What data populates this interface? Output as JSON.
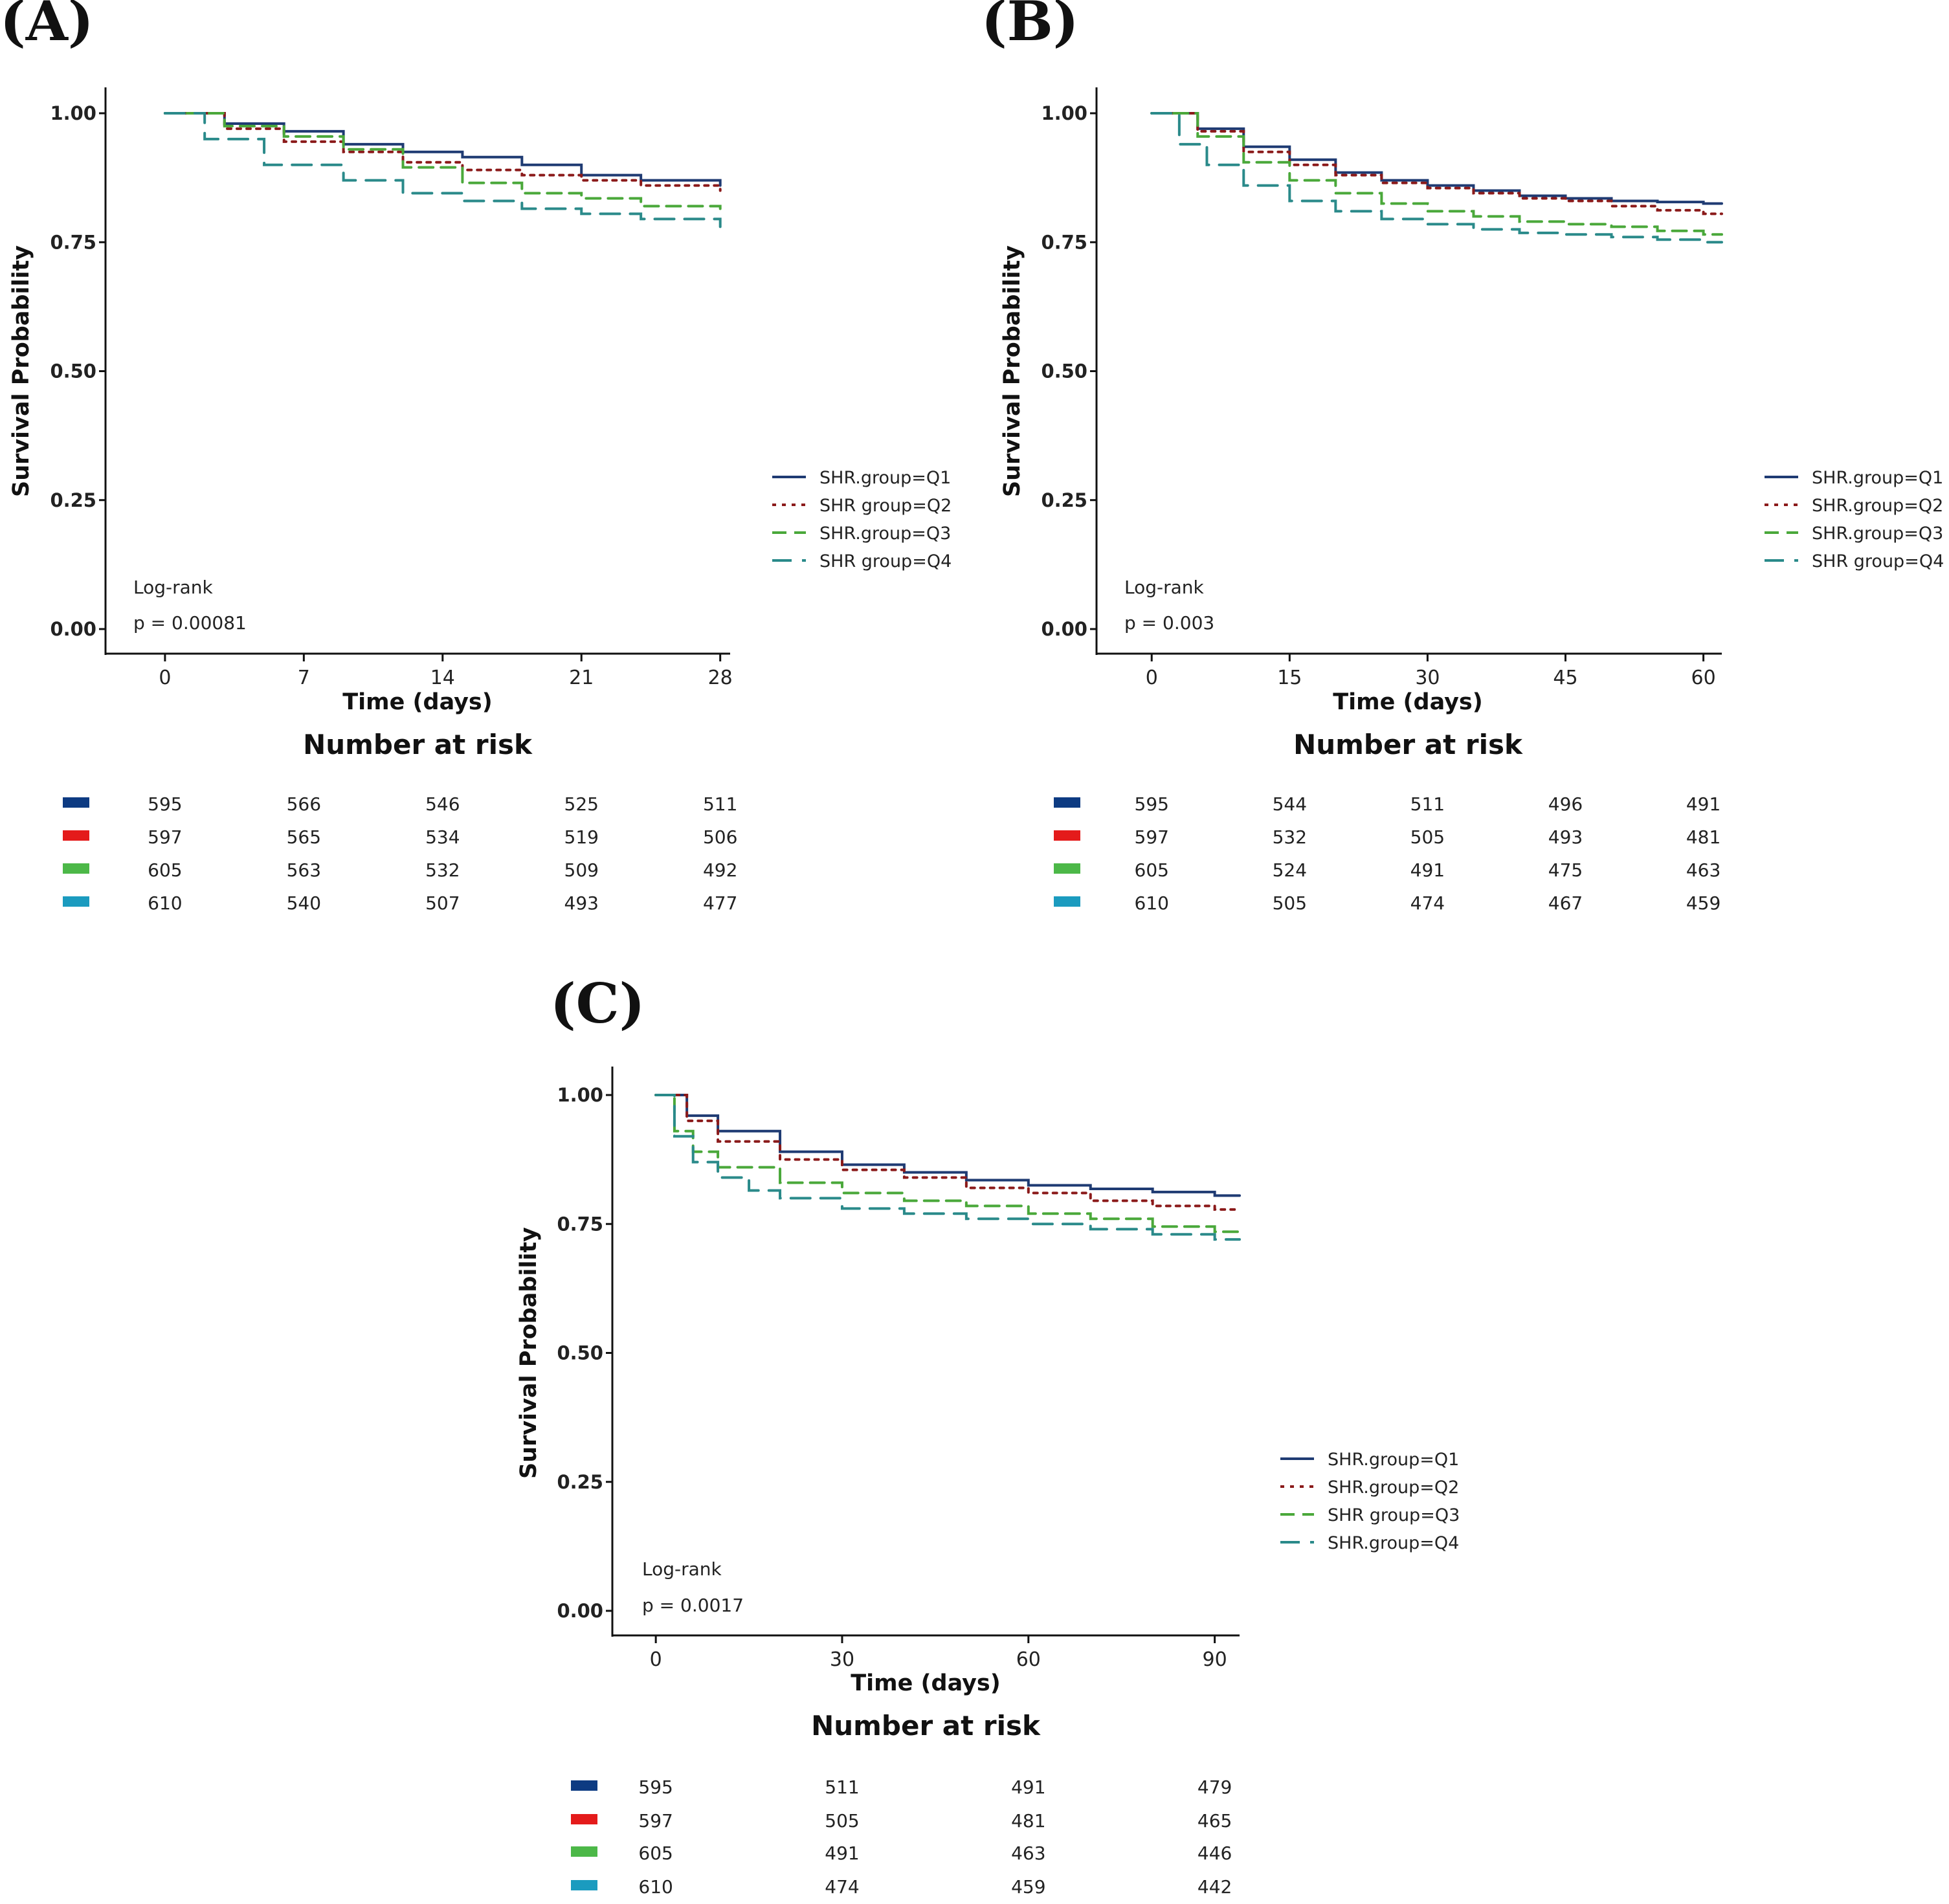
{
  "colors": {
    "Q1": "#1f3b73",
    "Q2": "#8b1a1a",
    "Q3": "#4aa83a",
    "Q4": "#2a8a8a",
    "risk_Q1": "#0d3b82",
    "risk_Q2": "#e41b1b",
    "risk_Q3": "#4cb848",
    "risk_Q4": "#1b9bbf",
    "axis": "#111111"
  },
  "chart_data": [
    {
      "type": "line",
      "panel_label": "(A)",
      "xlabel": "Time (days)",
      "ylabel": "Survival Probability",
      "xlim": [
        -3,
        28.5
      ],
      "ylim": [
        0,
        1.0
      ],
      "xticks": [
        0,
        7,
        14,
        21,
        28
      ],
      "xtick_labels": [
        "0",
        "7",
        "14",
        "21",
        "28"
      ],
      "yticks": [
        0.0,
        0.25,
        0.5,
        0.75,
        1.0
      ],
      "ytick_labels": [
        "0.00",
        "0.25",
        "0.50",
        "0.75",
        "1.00"
      ],
      "test_label": "Log-rank",
      "p_value_text": "p = 0.00081",
      "series": [
        {
          "name": "SHR.group=Q1",
          "key": "Q1",
          "dash": "solid",
          "x": [
            0,
            3,
            6,
            9,
            12,
            15,
            18,
            21,
            24,
            28
          ],
          "y": [
            1.0,
            0.98,
            0.965,
            0.94,
            0.925,
            0.915,
            0.9,
            0.88,
            0.87,
            0.86
          ]
        },
        {
          "name": "SHR group=Q2",
          "key": "Q2",
          "dash": "dotted",
          "x": [
            0,
            3,
            6,
            9,
            12,
            15,
            18,
            21,
            24,
            28
          ],
          "y": [
            1.0,
            0.97,
            0.945,
            0.925,
            0.905,
            0.89,
            0.88,
            0.87,
            0.86,
            0.85
          ]
        },
        {
          "name": "SHR.group=Q3",
          "key": "Q3",
          "dash": "dashed",
          "x": [
            0,
            3,
            6,
            9,
            12,
            15,
            18,
            21,
            24,
            28
          ],
          "y": [
            1.0,
            0.975,
            0.955,
            0.93,
            0.895,
            0.865,
            0.845,
            0.835,
            0.82,
            0.815
          ]
        },
        {
          "name": "SHR group=Q4",
          "key": "Q4",
          "dash": "longdash",
          "x": [
            0,
            2,
            5,
            9,
            12,
            15,
            18,
            21,
            24,
            28
          ],
          "y": [
            1.0,
            0.95,
            0.9,
            0.87,
            0.845,
            0.83,
            0.815,
            0.805,
            0.795,
            0.78
          ]
        }
      ],
      "risk_table": {
        "title": "Number at risk",
        "times": [
          0,
          7,
          14,
          21,
          28
        ],
        "rows": [
          {
            "key": "Q1",
            "values": [
              "595",
              "566",
              "546",
              "525",
              "511"
            ]
          },
          {
            "key": "Q2",
            "values": [
              "597",
              "565",
              "534",
              "519",
              "506"
            ]
          },
          {
            "key": "Q3",
            "values": [
              "605",
              "563",
              "532",
              "509",
              "492"
            ]
          },
          {
            "key": "Q4",
            "values": [
              "610",
              "540",
              "507",
              "493",
              "477"
            ]
          }
        ]
      }
    },
    {
      "type": "line",
      "panel_label": "(B)",
      "xlabel": "Time (days)",
      "ylabel": "Survival Probability",
      "xlim": [
        -6,
        62
      ],
      "ylim": [
        0,
        1.0
      ],
      "xticks": [
        0,
        15,
        30,
        45,
        60
      ],
      "xtick_labels": [
        "0",
        "15",
        "30",
        "45",
        "60"
      ],
      "yticks": [
        0.0,
        0.25,
        0.5,
        0.75,
        1.0
      ],
      "ytick_labels": [
        "0.00",
        "0.25",
        "0.50",
        "0.75",
        "1.00"
      ],
      "test_label": "Log-rank",
      "p_value_text": "p = 0.003",
      "series": [
        {
          "name": "SHR.group=Q1",
          "key": "Q1",
          "dash": "solid",
          "x": [
            0,
            5,
            10,
            15,
            20,
            25,
            30,
            35,
            40,
            45,
            50,
            55,
            60,
            62
          ],
          "y": [
            1.0,
            0.97,
            0.935,
            0.91,
            0.885,
            0.87,
            0.86,
            0.85,
            0.84,
            0.835,
            0.83,
            0.828,
            0.825,
            0.825
          ]
        },
        {
          "name": "SHR.group=Q2",
          "key": "Q2",
          "dash": "dotted",
          "x": [
            0,
            5,
            10,
            15,
            20,
            25,
            30,
            35,
            40,
            45,
            50,
            55,
            60,
            62
          ],
          "y": [
            1.0,
            0.965,
            0.925,
            0.9,
            0.88,
            0.865,
            0.855,
            0.845,
            0.835,
            0.83,
            0.82,
            0.812,
            0.805,
            0.805
          ]
        },
        {
          "name": "SHR.group=Q3",
          "key": "Q3",
          "dash": "dashed",
          "x": [
            0,
            5,
            10,
            15,
            20,
            25,
            30,
            35,
            40,
            45,
            50,
            55,
            60,
            62
          ],
          "y": [
            1.0,
            0.955,
            0.905,
            0.87,
            0.845,
            0.825,
            0.81,
            0.8,
            0.79,
            0.785,
            0.78,
            0.772,
            0.765,
            0.765
          ]
        },
        {
          "name": "SHR group=Q4",
          "key": "Q4",
          "dash": "longdash",
          "x": [
            0,
            3,
            6,
            10,
            15,
            20,
            25,
            30,
            35,
            40,
            45,
            50,
            55,
            60,
            62
          ],
          "y": [
            1.0,
            0.94,
            0.9,
            0.86,
            0.83,
            0.81,
            0.795,
            0.785,
            0.775,
            0.768,
            0.765,
            0.76,
            0.755,
            0.75,
            0.75
          ]
        }
      ],
      "risk_table": {
        "title": "Number at risk",
        "times": [
          0,
          15,
          30,
          45,
          60
        ],
        "rows": [
          {
            "key": "Q1",
            "values": [
              "595",
              "544",
              "511",
              "496",
              "491"
            ]
          },
          {
            "key": "Q2",
            "values": [
              "597",
              "532",
              "505",
              "493",
              "481"
            ]
          },
          {
            "key": "Q3",
            "values": [
              "605",
              "524",
              "491",
              "475",
              "463"
            ]
          },
          {
            "key": "Q4",
            "values": [
              "610",
              "505",
              "474",
              "467",
              "459"
            ]
          }
        ]
      }
    },
    {
      "type": "line",
      "panel_label": "(C)",
      "xlabel": "Time (days)",
      "ylabel": "Survival Probability",
      "xlim": [
        -7,
        94
      ],
      "ylim": [
        0,
        1.0
      ],
      "xticks": [
        0,
        30,
        60,
        90
      ],
      "xtick_labels": [
        "0",
        "30",
        "60",
        "90"
      ],
      "yticks": [
        0.0,
        0.25,
        0.5,
        0.75,
        1.0
      ],
      "ytick_labels": [
        "0.00",
        "0.25",
        "0.50",
        "0.75",
        "1.00"
      ],
      "test_label": "Log-rank",
      "p_value_text": "p = 0.0017",
      "series": [
        {
          "name": "SHR.group=Q1",
          "key": "Q1",
          "dash": "solid",
          "x": [
            0,
            5,
            10,
            20,
            30,
            40,
            50,
            60,
            70,
            80,
            90,
            94
          ],
          "y": [
            1.0,
            0.96,
            0.93,
            0.89,
            0.865,
            0.85,
            0.835,
            0.825,
            0.818,
            0.812,
            0.805,
            0.805
          ]
        },
        {
          "name": "SHR.group=Q2",
          "key": "Q2",
          "dash": "dotted",
          "x": [
            0,
            5,
            10,
            20,
            30,
            40,
            50,
            60,
            70,
            80,
            90,
            94
          ],
          "y": [
            1.0,
            0.95,
            0.91,
            0.875,
            0.855,
            0.84,
            0.82,
            0.81,
            0.795,
            0.785,
            0.778,
            0.778
          ]
        },
        {
          "name": "SHR group=Q3",
          "key": "Q3",
          "dash": "dashed",
          "x": [
            0,
            3,
            6,
            10,
            20,
            30,
            40,
            50,
            60,
            70,
            80,
            90,
            94
          ],
          "y": [
            1.0,
            0.93,
            0.89,
            0.86,
            0.83,
            0.81,
            0.795,
            0.785,
            0.77,
            0.76,
            0.745,
            0.735,
            0.735
          ]
        },
        {
          "name": "SHR.group=Q4",
          "key": "Q4",
          "dash": "longdash",
          "x": [
            0,
            3,
            6,
            10,
            15,
            20,
            30,
            40,
            50,
            60,
            70,
            80,
            90,
            94
          ],
          "y": [
            1.0,
            0.92,
            0.87,
            0.84,
            0.815,
            0.8,
            0.78,
            0.77,
            0.76,
            0.75,
            0.74,
            0.73,
            0.72,
            0.72
          ]
        }
      ],
      "risk_table": {
        "title": "Number at risk",
        "times": [
          0,
          30,
          60,
          90
        ],
        "rows": [
          {
            "key": "Q1",
            "values": [
              "595",
              "511",
              "491",
              "479"
            ]
          },
          {
            "key": "Q2",
            "values": [
              "597",
              "505",
              "481",
              "465"
            ]
          },
          {
            "key": "Q3",
            "values": [
              "605",
              "491",
              "463",
              "446"
            ]
          },
          {
            "key": "Q4",
            "values": [
              "610",
              "474",
              "459",
              "442"
            ]
          }
        ]
      }
    }
  ]
}
